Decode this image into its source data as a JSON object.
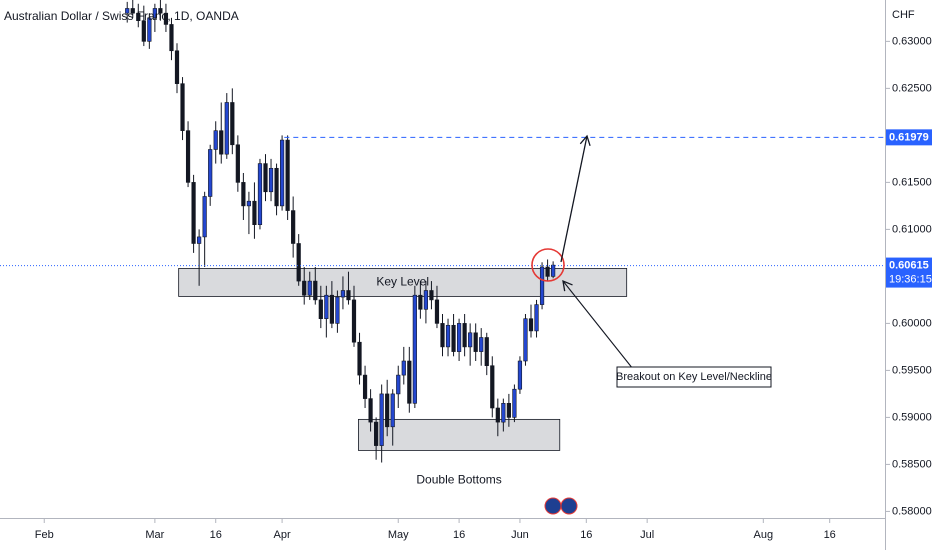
{
  "chart_data": {
    "type": "candlestick",
    "title": "Australian Dollar / Swiss Franc, 1D, OANDA",
    "y_axis_label": "CHF",
    "up_color": "#2447d0",
    "down_color": "#131722",
    "x": [
      0,
      1,
      2,
      3,
      4,
      5,
      6,
      7,
      8,
      9,
      10,
      11,
      12,
      13,
      14,
      15,
      16,
      17,
      18,
      19,
      20,
      21,
      22,
      23,
      24,
      25,
      26,
      27,
      28,
      29,
      30,
      31,
      32,
      33,
      34,
      35,
      36,
      37,
      38,
      39,
      40,
      41,
      42,
      43,
      44,
      45,
      46,
      47,
      48,
      49,
      50,
      51,
      52,
      53,
      54,
      55,
      56,
      57,
      58,
      59,
      60,
      61,
      62,
      63,
      64,
      65,
      66,
      67,
      68,
      69,
      70,
      71,
      72,
      73,
      74,
      75,
      76,
      77
    ],
    "open": [
      0.633,
      0.6335,
      0.633,
      0.6322,
      0.63,
      0.6325,
      0.6335,
      0.633,
      0.6318,
      0.629,
      0.6255,
      0.6205,
      0.615,
      0.6085,
      0.6092,
      0.6135,
      0.6185,
      0.6205,
      0.618,
      0.6235,
      0.619,
      0.615,
      0.6125,
      0.613,
      0.6105,
      0.617,
      0.614,
      0.6165,
      0.6125,
      0.6195,
      0.612,
      0.6085,
      0.6045,
      0.603,
      0.6045,
      0.6025,
      0.6005,
      0.603,
      0.6,
      0.6028,
      0.6035,
      0.6025,
      0.598,
      0.5945,
      0.592,
      0.5895,
      0.587,
      0.5925,
      0.589,
      0.5925,
      0.5945,
      0.596,
      0.5915,
      0.603,
      0.6015,
      0.6035,
      0.6025,
      0.6,
      0.5975,
      0.5998,
      0.597,
      0.6,
      0.5975,
      0.599,
      0.597,
      0.5985,
      0.5955,
      0.591,
      0.5895,
      0.5915,
      0.59,
      0.593,
      0.596,
      0.6005,
      0.5992,
      0.602,
      0.606,
      0.605
    ],
    "high": [
      0.6342,
      0.6345,
      0.634,
      0.6338,
      0.633,
      0.634,
      0.6344,
      0.634,
      0.6325,
      0.6298,
      0.6262,
      0.6215,
      0.6158,
      0.61,
      0.614,
      0.619,
      0.6215,
      0.6235,
      0.6245,
      0.625,
      0.62,
      0.616,
      0.614,
      0.615,
      0.6175,
      0.618,
      0.6175,
      0.617,
      0.62,
      0.62,
      0.6135,
      0.6095,
      0.606,
      0.6055,
      0.606,
      0.604,
      0.604,
      0.6045,
      0.6035,
      0.605,
      0.6055,
      0.604,
      0.599,
      0.5955,
      0.593,
      0.59,
      0.5935,
      0.594,
      0.593,
      0.5955,
      0.5975,
      0.5975,
      0.604,
      0.6045,
      0.6045,
      0.6045,
      0.604,
      0.601,
      0.6005,
      0.601,
      0.6005,
      0.601,
      0.6,
      0.6,
      0.5995,
      0.599,
      0.5965,
      0.592,
      0.592,
      0.5925,
      0.5935,
      0.5965,
      0.601,
      0.602,
      0.6025,
      0.6065,
      0.6068,
      0.6066
    ],
    "low": [
      0.632,
      0.6325,
      0.6315,
      0.6295,
      0.6292,
      0.631,
      0.6322,
      0.631,
      0.628,
      0.6245,
      0.6195,
      0.6145,
      0.6075,
      0.604,
      0.606,
      0.6125,
      0.617,
      0.617,
      0.6175,
      0.618,
      0.614,
      0.611,
      0.6095,
      0.609,
      0.61,
      0.613,
      0.613,
      0.6115,
      0.612,
      0.611,
      0.607,
      0.604,
      0.602,
      0.6025,
      0.602,
      0.5995,
      0.5985,
      0.5995,
      0.599,
      0.6015,
      0.602,
      0.5975,
      0.5935,
      0.591,
      0.5885,
      0.5855,
      0.5852,
      0.588,
      0.587,
      0.591,
      0.5935,
      0.5905,
      0.591,
      0.6005,
      0.6,
      0.6015,
      0.5995,
      0.5965,
      0.5965,
      0.5965,
      0.596,
      0.5965,
      0.5955,
      0.596,
      0.5955,
      0.5945,
      0.59,
      0.588,
      0.5885,
      0.589,
      0.5895,
      0.5925,
      0.5955,
      0.5985,
      0.5985,
      0.6015,
      0.6045,
      0.6048
    ],
    "close": [
      0.6335,
      0.633,
      0.6322,
      0.63,
      0.6325,
      0.6335,
      0.633,
      0.6318,
      0.629,
      0.6255,
      0.6205,
      0.615,
      0.6085,
      0.6092,
      0.6135,
      0.6185,
      0.6205,
      0.618,
      0.6235,
      0.619,
      0.615,
      0.6125,
      0.613,
      0.6105,
      0.617,
      0.614,
      0.6165,
      0.6125,
      0.6195,
      0.612,
      0.6085,
      0.6045,
      0.603,
      0.6045,
      0.6025,
      0.6005,
      0.603,
      0.6,
      0.6028,
      0.6035,
      0.6025,
      0.598,
      0.5945,
      0.592,
      0.5895,
      0.587,
      0.5925,
      0.589,
      0.5925,
      0.5945,
      0.596,
      0.5915,
      0.603,
      0.6015,
      0.6035,
      0.6025,
      0.6,
      0.5975,
      0.5998,
      0.597,
      0.6,
      0.5975,
      0.599,
      0.597,
      0.5985,
      0.5955,
      0.591,
      0.5895,
      0.5915,
      0.59,
      0.593,
      0.596,
      0.6005,
      0.5992,
      0.602,
      0.606,
      0.605,
      0.6062
    ],
    "xlim": [
      -23,
      137
    ],
    "xticks": [
      {
        "value": -15,
        "label": "Feb"
      },
      {
        "value": 5,
        "label": "Mar"
      },
      {
        "value": 16,
        "label": "16"
      },
      {
        "value": 28,
        "label": "Apr"
      },
      {
        "value": 49,
        "label": "May"
      },
      {
        "value": 60,
        "label": "16"
      },
      {
        "value": 71,
        "label": "Jun"
      },
      {
        "value": 83,
        "label": "16"
      },
      {
        "value": 94,
        "label": "Jul"
      },
      {
        "value": 115,
        "label": "Aug"
      },
      {
        "value": 127,
        "label": "16"
      }
    ],
    "ylim": [
      0.5793,
      0.6344
    ],
    "yticks": [
      {
        "value": 0.58,
        "label": "0.58000"
      },
      {
        "value": 0.585,
        "label": "0.58500"
      },
      {
        "value": 0.59,
        "label": "0.59000"
      },
      {
        "value": 0.595,
        "label": "0.59500"
      },
      {
        "value": 0.6,
        "label": "0.60000"
      },
      {
        "value": 0.61,
        "label": "0.61000"
      },
      {
        "value": 0.615,
        "label": "0.61500"
      },
      {
        "value": 0.625,
        "label": "0.62500"
      },
      {
        "value": 0.63,
        "label": "0.63000"
      }
    ],
    "levels": [
      {
        "value": 0.61979,
        "style": "dashed",
        "x_start": 28.4
      },
      {
        "value": 0.60615,
        "style": "dotted",
        "x_start": -23,
        "countdown": "19:36:15"
      }
    ],
    "zones": [
      {
        "label": "Key Level",
        "x": [
          9.3,
          90.3
        ],
        "y": [
          0.60287,
          0.60585
        ]
      },
      {
        "label": "Double Bottoms",
        "x": [
          41.8,
          78.2
        ],
        "y": [
          0.58649,
          0.58979
        ]
      }
    ],
    "callout": "Breakout on Key Level/Neckline"
  }
}
